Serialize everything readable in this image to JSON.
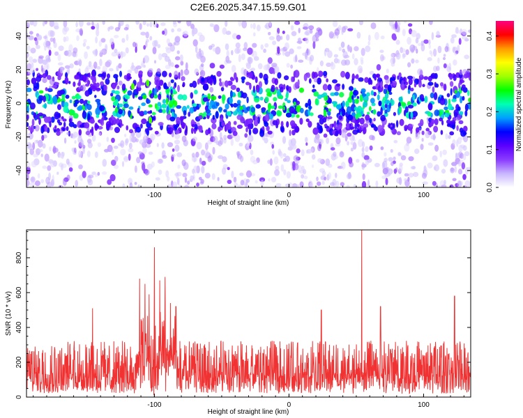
{
  "title": "C2E6.2025.347.15.59.G01",
  "chart_data": [
    {
      "type": "heatmap",
      "xlabel": "Height of straight line (km)",
      "ylabel": "Frequency (Hz)",
      "xlim": [
        -195,
        135
      ],
      "ylim": [
        -50,
        49
      ],
      "xticks": [
        -100,
        0,
        100
      ],
      "yticks": [
        -40,
        -20,
        0,
        20,
        40
      ],
      "colorbar": {
        "label": "Normalized spectral amplitude",
        "range": [
          0,
          0.44
        ],
        "ticks": [
          0.0,
          0.1,
          0.2,
          0.3,
          0.4
        ],
        "colors": [
          "#ffffff",
          "#c9b6ff",
          "#8a3cff",
          "#5a00ff",
          "#0000ff",
          "#00a0ff",
          "#00ffb4",
          "#00ff00",
          "#a0ff00",
          "#ffff00",
          "#ff9a00",
          "#ff0000",
          "#ff0080"
        ]
      },
      "description_band": {
        "center_hz": 0,
        "core_halfwidth_hz": 8,
        "envelope_halfwidth_hz": 18
      },
      "hotspots": [
        {
          "x": -116,
          "y": 10
        },
        {
          "x": -103,
          "y": -10
        },
        {
          "x": -105,
          "y": 12
        }
      ]
    },
    {
      "type": "line",
      "xlabel": "Height of straight line (km)",
      "ylabel": "SNR (10 * v/v)",
      "xlim": [
        -195,
        135
      ],
      "ylim": [
        0,
        960
      ],
      "xticks": [
        -100,
        0,
        100
      ],
      "yticks": [
        0,
        200,
        400,
        600,
        800
      ],
      "color": "#f03232",
      "baseline": {
        "floor": 20,
        "mean": 170,
        "peak_typical": 330
      },
      "peaks": [
        {
          "x": -111,
          "y": 680
        },
        {
          "x": -107,
          "y": 650
        },
        {
          "x": -104,
          "y": 590
        },
        {
          "x": -100,
          "y": 860
        },
        {
          "x": -96,
          "y": 670
        },
        {
          "x": -92,
          "y": 690
        },
        {
          "x": -88,
          "y": 540
        },
        {
          "x": -84,
          "y": 520
        },
        {
          "x": 54,
          "y": 960
        },
        {
          "x": 24,
          "y": 500
        },
        {
          "x": 123,
          "y": 580
        },
        {
          "x": -146,
          "y": 510
        },
        {
          "x": 68,
          "y": 520
        }
      ]
    }
  ]
}
